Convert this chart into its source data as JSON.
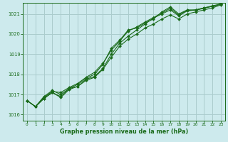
{
  "xlabel": "Graphe pression niveau de la mer (hPa)",
  "background_color": "#cdeaed",
  "grid_color": "#aacccc",
  "line_color": "#1a6b1a",
  "marker_color": "#1a6b1a",
  "ylim": [
    1015.7,
    1021.55
  ],
  "xlim": [
    -0.5,
    23.5
  ],
  "yticks": [
    1016,
    1017,
    1018,
    1019,
    1020,
    1021
  ],
  "xticks": [
    0,
    1,
    2,
    3,
    4,
    5,
    6,
    7,
    8,
    9,
    10,
    11,
    12,
    13,
    14,
    15,
    16,
    17,
    18,
    19,
    20,
    21,
    22,
    23
  ],
  "series": [
    [
      1016.7,
      1016.4,
      1016.9,
      1017.2,
      1017.0,
      1017.3,
      1017.5,
      1017.8,
      1018.0,
      1018.5,
      1019.3,
      1019.7,
      1020.2,
      1020.3,
      1020.55,
      1020.75,
      1021.1,
      1021.35,
      1021.0,
      1021.2,
      1021.2,
      1021.3,
      1021.4,
      1021.5
    ],
    [
      1016.7,
      1016.4,
      1016.8,
      1017.1,
      1016.9,
      1017.3,
      1017.4,
      1017.75,
      1017.9,
      1018.3,
      1019.0,
      1019.55,
      1019.9,
      1020.2,
      1020.5,
      1020.8,
      1021.0,
      1021.2,
      1020.9,
      1021.15,
      1021.2,
      1021.3,
      1021.38,
      1021.48
    ],
    [
      1016.7,
      1016.4,
      1016.8,
      1017.1,
      1016.85,
      1017.25,
      1017.4,
      1017.7,
      1017.85,
      1018.25,
      1018.85,
      1019.4,
      1019.75,
      1020.0,
      1020.3,
      1020.5,
      1020.75,
      1020.95,
      1020.75,
      1021.0,
      1021.1,
      1021.2,
      1021.3,
      1021.45
    ],
    [
      1016.7,
      1016.4,
      1016.85,
      1017.15,
      1017.1,
      1017.35,
      1017.55,
      1017.85,
      1018.1,
      1018.55,
      1019.2,
      1019.65,
      1020.15,
      1020.35,
      1020.6,
      1020.82,
      1021.05,
      1021.28,
      1020.95,
      1021.18,
      1021.18,
      1021.28,
      1021.38,
      1021.48
    ]
  ]
}
